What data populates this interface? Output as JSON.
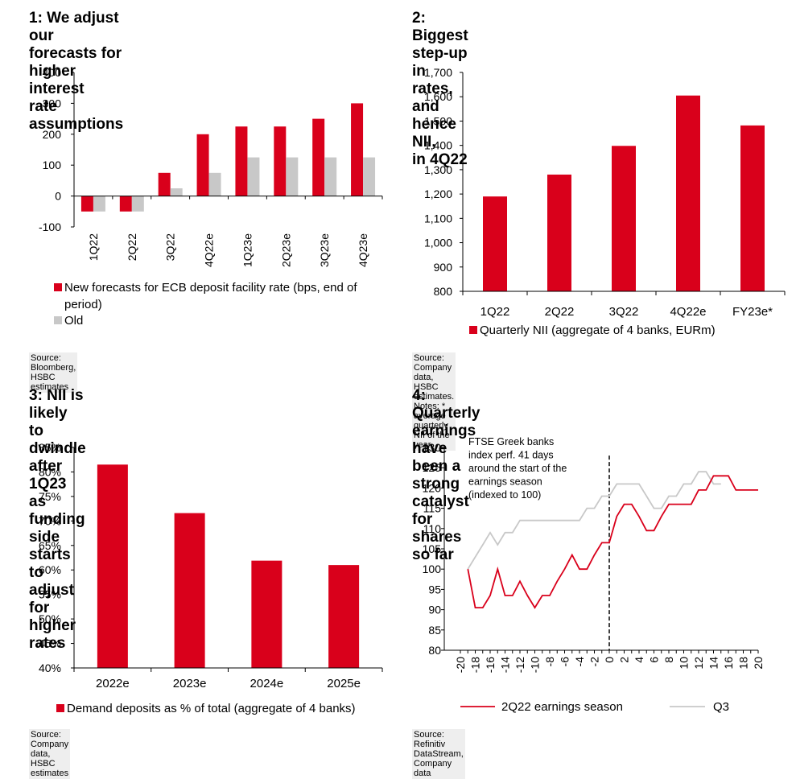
{
  "colors": {
    "new": "#d9001b",
    "old": "#c8c8c8",
    "axis": "#000000",
    "q3line": "#c8c8c8"
  },
  "panels": [
    {
      "title": "1: We adjust our forecasts for higher interest rate assumptions",
      "title_lines": [
        "1: We adjust our forecasts for higher interest",
        "rate assumptions"
      ],
      "source": "Source: Bloomberg, HSBC estimates"
    },
    {
      "title": "2: Biggest step-up in rates, and hence NII, in 4Q22",
      "title_lines": [
        "2: Biggest step-up in rates, and hence NII,",
        "in 4Q22"
      ],
      "source": "Source: Company data, HSBC estimates. Notes: * average quarterly NII of the year"
    },
    {
      "title": "3: NII is likely to dwindle after 1Q23 as funding side starts to adjust for higher rates",
      "title_lines": [
        "3: NII is likely to dwindle after 1Q23 as funding",
        "side starts to adjust for higher rates"
      ],
      "source": "Source: Company data, HSBC estimates"
    },
    {
      "title": "4: Quarterly earnings have been a strong catalyst for shares so far",
      "title_lines": [
        "4: Quarterly earnings have been a strong",
        "catalyst for shares so far"
      ],
      "source": "Source: Refinitiv DataStream, Company data"
    }
  ],
  "chart_data": [
    {
      "type": "bar",
      "categories": [
        "1Q22",
        "2Q22",
        "3Q22",
        "4Q22e",
        "1Q23e",
        "2Q23e",
        "3Q23e",
        "4Q23e"
      ],
      "series": [
        {
          "name": "New forecasts for ECB deposit facility rate (bps, end of period)",
          "legend_lines": [
            "New forecasts for ECB deposit facility rate (bps, end of",
            "period)"
          ],
          "values": [
            -50,
            -50,
            75,
            200,
            225,
            225,
            250,
            300
          ]
        },
        {
          "name": "Old",
          "legend_lines": [
            "Old"
          ],
          "values": [
            -50,
            -50,
            25,
            75,
            125,
            125,
            125,
            125
          ]
        }
      ],
      "ylim": [
        -100,
        400
      ],
      "yticks": [
        400,
        300,
        200,
        100,
        0,
        -100
      ],
      "ytick_labels": [
        "400",
        "300",
        "200",
        "100",
        "0",
        "-100"
      ],
      "xlabel": "",
      "ylabel": ""
    },
    {
      "type": "bar",
      "categories": [
        "1Q22",
        "2Q22",
        "3Q22",
        "4Q22e",
        "FY23e*"
      ],
      "series": [
        {
          "name": "Quarterly NII (aggregate of 4 banks, EURm)",
          "values": [
            1190,
            1280,
            1398,
            1605,
            1482
          ]
        }
      ],
      "ylim": [
        800,
        1700
      ],
      "yticks": [
        1700,
        1600,
        1500,
        1400,
        1300,
        1200,
        1100,
        1000,
        900,
        800
      ],
      "ytick_labels": [
        "1,700",
        "1,600",
        "1,500",
        "1,400",
        "1,300",
        "1,200",
        "1,100",
        "1,000",
        "900",
        "800"
      ],
      "xlabel": "",
      "ylabel": ""
    },
    {
      "type": "bar",
      "categories": [
        "2022e",
        "2023e",
        "2024e",
        "2025e"
      ],
      "series": [
        {
          "name": "Demand deposits as % of total (aggregate of 4 banks)",
          "values": [
            81.5,
            71.6,
            61.9,
            61.0
          ]
        }
      ],
      "ylim": [
        40,
        85
      ],
      "yticks": [
        85,
        80,
        75,
        70,
        65,
        60,
        55,
        50,
        45,
        40
      ],
      "ytick_labels": [
        "85%",
        "80%",
        "75%",
        "70%",
        "65%",
        "60%",
        "55%",
        "50%",
        "45%",
        "40%"
      ],
      "xlabel": "",
      "ylabel": ""
    },
    {
      "type": "line",
      "x": [
        -19,
        -18,
        -17,
        -16,
        -15,
        -14,
        -13,
        -12,
        -11,
        -10,
        -9,
        -8,
        -7,
        -6,
        -5,
        -4,
        -3,
        -2,
        -1,
        0,
        1,
        2,
        3,
        4,
        5,
        6,
        7,
        8,
        9,
        10,
        11,
        12,
        13,
        14,
        15,
        16,
        17,
        18,
        19,
        20
      ],
      "series": [
        {
          "name": "2Q22 earnings season",
          "values": [
            100,
            90.5,
            90.5,
            93.5,
            100,
            93.5,
            93.5,
            97,
            93.5,
            90.5,
            93.5,
            93.5,
            97,
            100,
            103.5,
            100,
            100,
            103.5,
            106.5,
            106.5,
            113,
            116,
            116,
            113,
            109.5,
            109.5,
            113,
            116,
            116,
            116,
            116,
            119.5,
            119.5,
            123,
            123,
            123,
            119.5,
            119.5,
            119.5,
            119.5
          ]
        },
        {
          "name": "Q3",
          "values": [
            100,
            103,
            106,
            109,
            106,
            109,
            109,
            112,
            112,
            112,
            112,
            112,
            112,
            112,
            112,
            112,
            115,
            115,
            118,
            118,
            121,
            121,
            121,
            121,
            118,
            115,
            115,
            118,
            118,
            121,
            121,
            124,
            124,
            121,
            121,
            null,
            null,
            null,
            null,
            null
          ]
        }
      ],
      "vline_x": 0,
      "xlim": [
        -20,
        20
      ],
      "xticks": [
        -20,
        -18,
        -16,
        -14,
        -12,
        -10,
        -8,
        -6,
        -4,
        -2,
        0,
        2,
        4,
        6,
        8,
        10,
        12,
        14,
        16,
        18,
        20
      ],
      "xtick_labels": [
        "-20",
        "-18",
        "-16",
        "-14",
        "-12",
        "-10",
        "-8",
        "-6",
        "-4",
        "-2",
        "0",
        "2",
        "4",
        "6",
        "8",
        "10",
        "12",
        "14",
        "16",
        "18",
        "20"
      ],
      "ylim": [
        80,
        130
      ],
      "yticks": [
        130,
        125,
        120,
        115,
        110,
        105,
        100,
        95,
        90,
        85,
        80
      ],
      "ytick_labels": [
        "130",
        "125",
        "120",
        "115",
        "110",
        "105",
        "100",
        "95",
        "90",
        "85",
        "80"
      ],
      "annotation_lines": [
        "FTSE Greek banks",
        "index perf. 41 days",
        "around the start of the",
        "earnings season",
        "(indexed to 100)"
      ],
      "xlabel": "",
      "ylabel": ""
    }
  ]
}
